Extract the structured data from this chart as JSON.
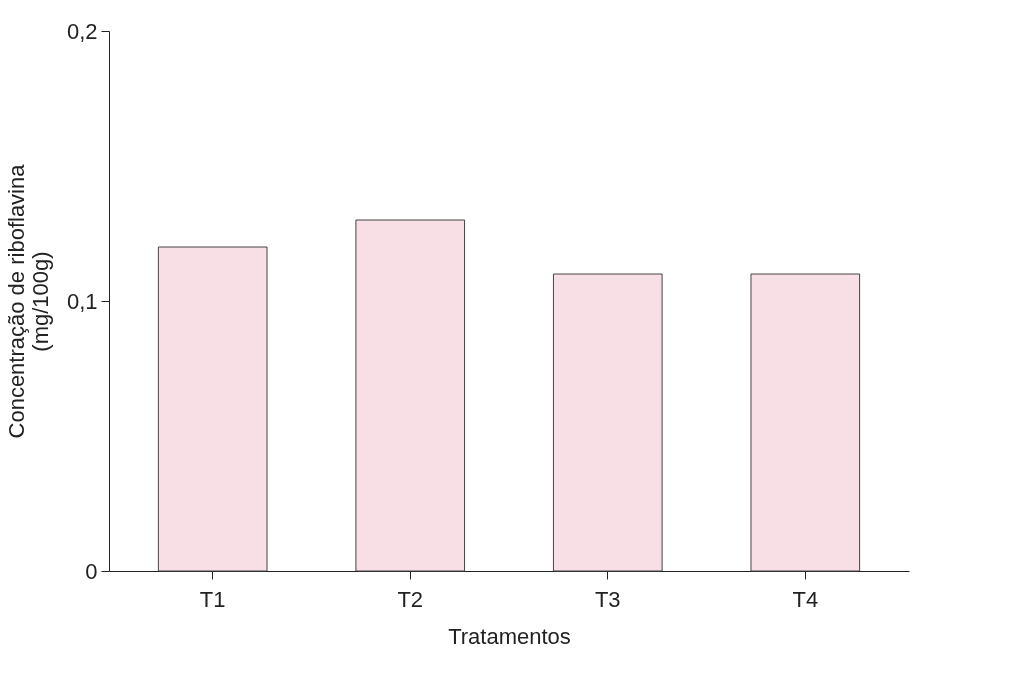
{
  "chart_data": {
    "type": "bar",
    "xlabel": "Tratamentos",
    "ylabel": "Concentração de riboflavina\n(mg/100g)",
    "categories": [
      "T1",
      "T2",
      "T3",
      "T4"
    ],
    "values": [
      0.12,
      0.13,
      0.11,
      0.11
    ],
    "color": "#f7dfe5",
    "ylim": [
      0,
      0.2
    ],
    "yticks": [
      0,
      {
        "value": 0.1,
        "label": "0,1"
      },
      {
        "value": 0.2,
        "label": "0,2"
      }
    ],
    "grid": false
  }
}
